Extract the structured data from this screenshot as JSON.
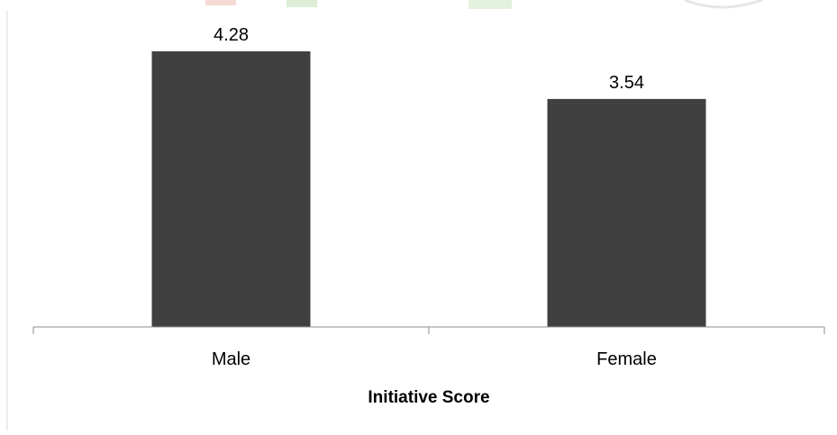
{
  "chart_data": {
    "type": "bar",
    "categories": [
      "Male",
      "Female"
    ],
    "values": [
      4.28,
      3.54
    ],
    "data_labels": [
      "4.28",
      "3.54"
    ],
    "title": "",
    "xlabel": "Initiative Score",
    "ylabel": "",
    "ylim": [
      0,
      5
    ],
    "grid": false,
    "legend": "none",
    "bar_color": "#404040",
    "axis_color": "#8c8c8c",
    "text_color": "#000000"
  }
}
